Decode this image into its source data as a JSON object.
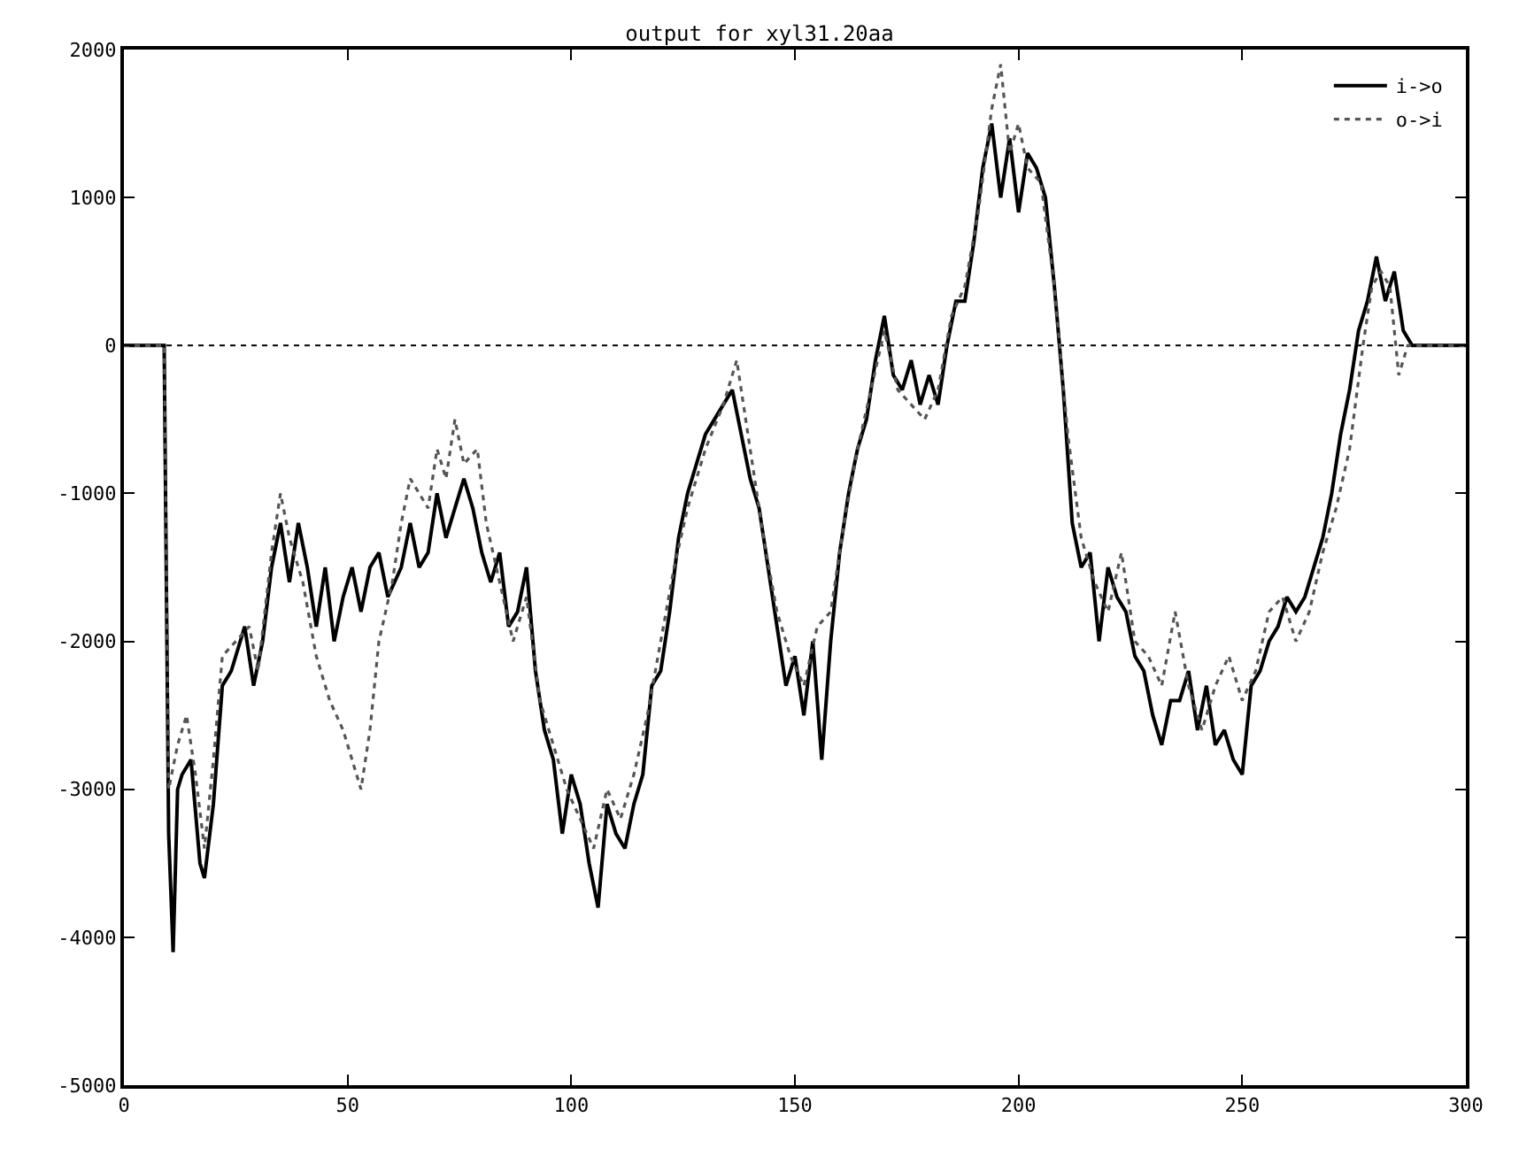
{
  "chart_data": {
    "type": "line",
    "title": "output for xyl31.20aa",
    "xlim": [
      0,
      300
    ],
    "xticks": [
      0,
      50,
      100,
      150,
      200,
      250,
      300
    ],
    "ylim": [
      -5000,
      2000
    ],
    "yticks": [
      -5000,
      -4000,
      -3000,
      -2000,
      -1000,
      0,
      1000,
      2000
    ],
    "grid": false,
    "legend": "top right",
    "marker": "none",
    "ref_lines": [
      {
        "axis": "y",
        "value": 0,
        "color": "#000000",
        "line_style": "dotted"
      }
    ],
    "series": [
      {
        "name": "i->o",
        "color": "#000000",
        "line_style": "solid",
        "x": [
          0,
          9,
          10,
          11,
          12,
          13,
          15,
          17,
          18,
          20,
          22,
          24,
          27,
          29,
          31,
          33,
          35,
          37,
          39,
          41,
          43,
          45,
          47,
          49,
          51,
          53,
          55,
          57,
          59,
          62,
          64,
          66,
          68,
          70,
          72,
          74,
          76,
          78,
          80,
          82,
          84,
          86,
          88,
          90,
          92,
          94,
          96,
          98,
          100,
          102,
          104,
          106,
          108,
          110,
          112,
          114,
          116,
          118,
          120,
          122,
          124,
          126,
          128,
          130,
          132,
          134,
          136,
          138,
          140,
          142,
          144,
          146,
          148,
          150,
          152,
          154,
          156,
          158,
          160,
          162,
          164,
          166,
          168,
          170,
          172,
          174,
          176,
          178,
          180,
          182,
          184,
          186,
          188,
          190,
          192,
          194,
          196,
          198,
          200,
          202,
          204,
          206,
          208,
          210,
          212,
          214,
          216,
          218,
          220,
          222,
          224,
          226,
          228,
          230,
          232,
          234,
          236,
          238,
          240,
          242,
          244,
          246,
          248,
          250,
          252,
          254,
          256,
          258,
          260,
          262,
          264,
          266,
          268,
          270,
          272,
          274,
          276,
          278,
          280,
          282,
          284,
          286,
          288,
          300
        ],
        "values": [
          0,
          0,
          -3300,
          -4100,
          -3000,
          -2900,
          -2800,
          -3500,
          -3600,
          -3100,
          -2300,
          -2200,
          -1900,
          -2300,
          -2000,
          -1500,
          -1200,
          -1600,
          -1200,
          -1500,
          -1900,
          -1500,
          -2000,
          -1700,
          -1500,
          -1800,
          -1500,
          -1400,
          -1700,
          -1500,
          -1200,
          -1500,
          -1400,
          -1000,
          -1300,
          -1100,
          -900,
          -1100,
          -1400,
          -1600,
          -1400,
          -1900,
          -1800,
          -1500,
          -2200,
          -2600,
          -2800,
          -3300,
          -2900,
          -3100,
          -3500,
          -3800,
          -3100,
          -3300,
          -3400,
          -3100,
          -2900,
          -2300,
          -2200,
          -1800,
          -1300,
          -1000,
          -800,
          -600,
          -500,
          -400,
          -300,
          -600,
          -900,
          -1100,
          -1500,
          -1900,
          -2300,
          -2100,
          -2500,
          -2000,
          -2800,
          -2000,
          -1400,
          -1000,
          -700,
          -500,
          -100,
          200,
          -200,
          -300,
          -100,
          -400,
          -200,
          -400,
          0,
          300,
          300,
          700,
          1200,
          1500,
          1000,
          1400,
          900,
          1300,
          1200,
          1000,
          400,
          -300,
          -1200,
          -1500,
          -1400,
          -2000,
          -1500,
          -1700,
          -1800,
          -2100,
          -2200,
          -2500,
          -2700,
          -2400,
          -2400,
          -2200,
          -2600,
          -2300,
          -2700,
          -2600,
          -2800,
          -2900,
          -2300,
          -2200,
          -2000,
          -1900,
          -1700,
          -1800,
          -1700,
          -1500,
          -1300,
          -1000,
          -600,
          -300,
          100,
          300,
          600,
          300,
          500,
          100,
          0,
          0
        ]
      },
      {
        "name": "o->i",
        "color": "#555555",
        "line_style": "dotted",
        "x": [
          0,
          9,
          10,
          12,
          14,
          16,
          18,
          20,
          22,
          25,
          28,
          30,
          33,
          35,
          37,
          40,
          43,
          46,
          49,
          51,
          53,
          55,
          57,
          60,
          62,
          64,
          66,
          68,
          70,
          72,
          74,
          76,
          79,
          81,
          84,
          87,
          90,
          93,
          96,
          99,
          102,
          105,
          108,
          111,
          114,
          117,
          120,
          123,
          126,
          130,
          134,
          137,
          140,
          143,
          146,
          149,
          152,
          155,
          158,
          161,
          164,
          167,
          170,
          173,
          176,
          179,
          182,
          185,
          188,
          191,
          194,
          196,
          198,
          200,
          202,
          205,
          208,
          211,
          214,
          217,
          220,
          223,
          226,
          229,
          232,
          235,
          238,
          241,
          244,
          247,
          250,
          253,
          256,
          259,
          262,
          265,
          268,
          271,
          274,
          277,
          279,
          281,
          283,
          285,
          287,
          300
        ],
        "values": [
          0,
          0,
          -3000,
          -2700,
          -2500,
          -2900,
          -3400,
          -2800,
          -2100,
          -2000,
          -1900,
          -2200,
          -1400,
          -1000,
          -1300,
          -1600,
          -2100,
          -2400,
          -2600,
          -2800,
          -3000,
          -2600,
          -2000,
          -1600,
          -1200,
          -900,
          -1000,
          -1100,
          -700,
          -900,
          -500,
          -800,
          -700,
          -1200,
          -1600,
          -2000,
          -1700,
          -2400,
          -2700,
          -3000,
          -3200,
          -3400,
          -3000,
          -3200,
          -2900,
          -2500,
          -2000,
          -1500,
          -1100,
          -700,
          -400,
          -100,
          -700,
          -1300,
          -1800,
          -2100,
          -2300,
          -1900,
          -1800,
          -1200,
          -700,
          -300,
          100,
          -300,
          -400,
          -500,
          -300,
          200,
          400,
          900,
          1600,
          1900,
          1300,
          1500,
          1200,
          1100,
          400,
          -600,
          -1300,
          -1600,
          -1800,
          -1400,
          -2000,
          -2100,
          -2300,
          -1800,
          -2300,
          -2600,
          -2300,
          -2100,
          -2400,
          -2200,
          -1800,
          -1700,
          -2000,
          -1800,
          -1400,
          -1100,
          -700,
          0,
          400,
          500,
          400,
          -200,
          0,
          0
        ]
      }
    ]
  }
}
